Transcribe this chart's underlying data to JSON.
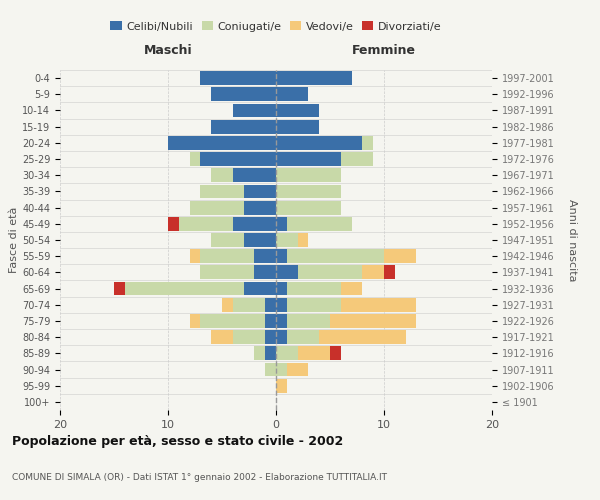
{
  "age_groups": [
    "100+",
    "95-99",
    "90-94",
    "85-89",
    "80-84",
    "75-79",
    "70-74",
    "65-69",
    "60-64",
    "55-59",
    "50-54",
    "45-49",
    "40-44",
    "35-39",
    "30-34",
    "25-29",
    "20-24",
    "15-19",
    "10-14",
    "5-9",
    "0-4"
  ],
  "birth_years": [
    "≤ 1901",
    "1902-1906",
    "1907-1911",
    "1912-1916",
    "1917-1921",
    "1922-1926",
    "1927-1931",
    "1932-1936",
    "1937-1941",
    "1942-1946",
    "1947-1951",
    "1952-1956",
    "1957-1961",
    "1962-1966",
    "1967-1971",
    "1972-1976",
    "1977-1981",
    "1982-1986",
    "1987-1991",
    "1992-1996",
    "1997-2001"
  ],
  "males": {
    "celibi": [
      0,
      0,
      0,
      1,
      1,
      1,
      1,
      3,
      2,
      2,
      3,
      4,
      3,
      3,
      4,
      7,
      10,
      6,
      4,
      6,
      7
    ],
    "coniugati": [
      0,
      0,
      1,
      1,
      3,
      6,
      3,
      11,
      5,
      5,
      3,
      5,
      5,
      4,
      2,
      1,
      0,
      0,
      0,
      0,
      0
    ],
    "vedovi": [
      0,
      0,
      0,
      0,
      2,
      1,
      1,
      0,
      0,
      1,
      0,
      0,
      0,
      0,
      0,
      0,
      0,
      0,
      0,
      0,
      0
    ],
    "divorziati": [
      0,
      0,
      0,
      0,
      0,
      0,
      0,
      1,
      0,
      0,
      0,
      1,
      0,
      0,
      0,
      0,
      0,
      0,
      0,
      0,
      0
    ]
  },
  "females": {
    "nubili": [
      0,
      0,
      0,
      0,
      1,
      1,
      1,
      1,
      2,
      1,
      0,
      1,
      0,
      0,
      0,
      6,
      8,
      4,
      4,
      3,
      7
    ],
    "coniugate": [
      0,
      0,
      1,
      2,
      3,
      4,
      5,
      5,
      6,
      9,
      2,
      6,
      6,
      6,
      6,
      3,
      1,
      0,
      0,
      0,
      0
    ],
    "vedove": [
      0,
      1,
      2,
      3,
      8,
      8,
      7,
      2,
      2,
      3,
      1,
      0,
      0,
      0,
      0,
      0,
      0,
      0,
      0,
      0,
      0
    ],
    "divorziate": [
      0,
      0,
      0,
      1,
      0,
      0,
      0,
      0,
      1,
      0,
      0,
      0,
      0,
      0,
      0,
      0,
      0,
      0,
      0,
      0,
      0
    ]
  },
  "colors": {
    "celibi_nubili": "#3a6fa8",
    "coniugati_e": "#c8d9a8",
    "vedovi_e": "#f5c97a",
    "divorziati_e": "#c8302a"
  },
  "xlim": [
    -20,
    20
  ],
  "title": "Popolazione per età, sesso e stato civile - 2002",
  "subtitle": "COMUNE DI SIMALA (OR) - Dati ISTAT 1° gennaio 2002 - Elaborazione TUTTITALIA.IT",
  "ylabel_left": "Fasce di età",
  "ylabel_right": "Anni di nascita",
  "xlabel_left": "Maschi",
  "xlabel_right": "Femmine",
  "bg_color": "#f5f5f0",
  "grid_color": "#cccccc",
  "bar_height": 0.85
}
